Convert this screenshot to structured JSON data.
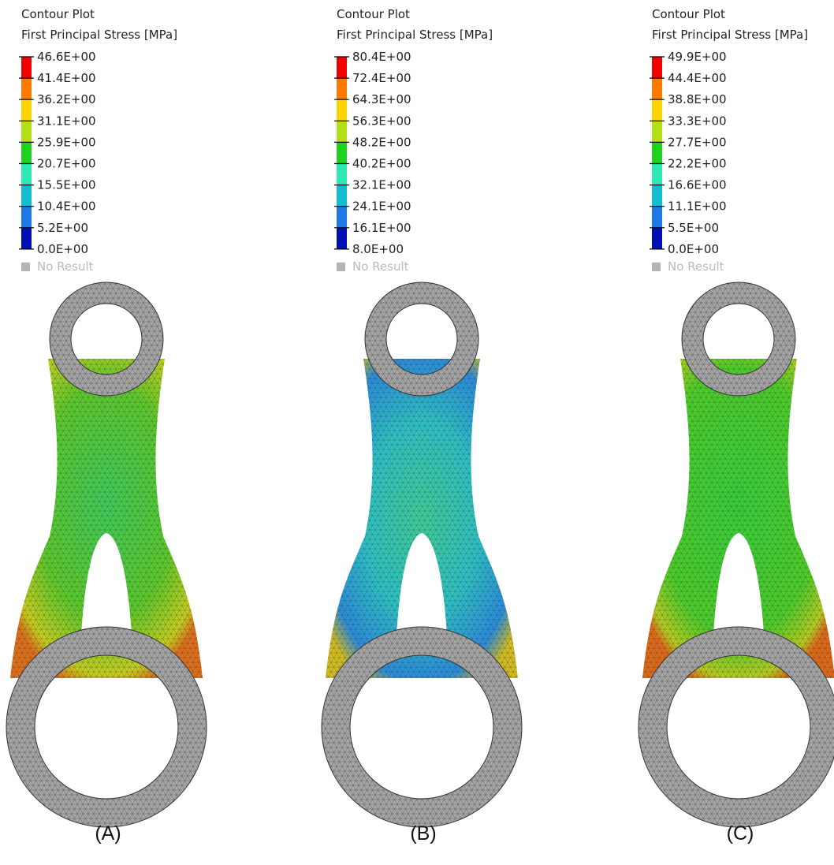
{
  "panels": [
    {
      "title": "Contour Plot",
      "subtitle": "First Principal Stress [MPa]",
      "legend": [
        "46.6E+00",
        "41.4E+00",
        "36.2E+00",
        "31.1E+00",
        "25.9E+00",
        "20.7E+00",
        "15.5E+00",
        "10.4E+00",
        "5.2E+00",
        "0.0E+00"
      ],
      "no_result": "No Result",
      "caption": "(A)"
    },
    {
      "title": "Contour Plot",
      "subtitle": "First Principal Stress [MPa]",
      "legend": [
        "80.4E+00",
        "72.4E+00",
        "64.3E+00",
        "56.3E+00",
        "48.2E+00",
        "40.2E+00",
        "32.1E+00",
        "24.1E+00",
        "16.1E+00",
        "8.0E+00"
      ],
      "no_result": "No Result",
      "caption": "(B)"
    },
    {
      "title": "Contour Plot",
      "subtitle": "First Principal Stress [MPa]",
      "legend": [
        "49.9E+00",
        "44.4E+00",
        "38.8E+00",
        "33.3E+00",
        "27.7E+00",
        "22.2E+00",
        "16.6E+00",
        "11.1E+00",
        "5.5E+00",
        "0.0E+00"
      ],
      "no_result": "No Result",
      "caption": "(C)"
    }
  ]
}
